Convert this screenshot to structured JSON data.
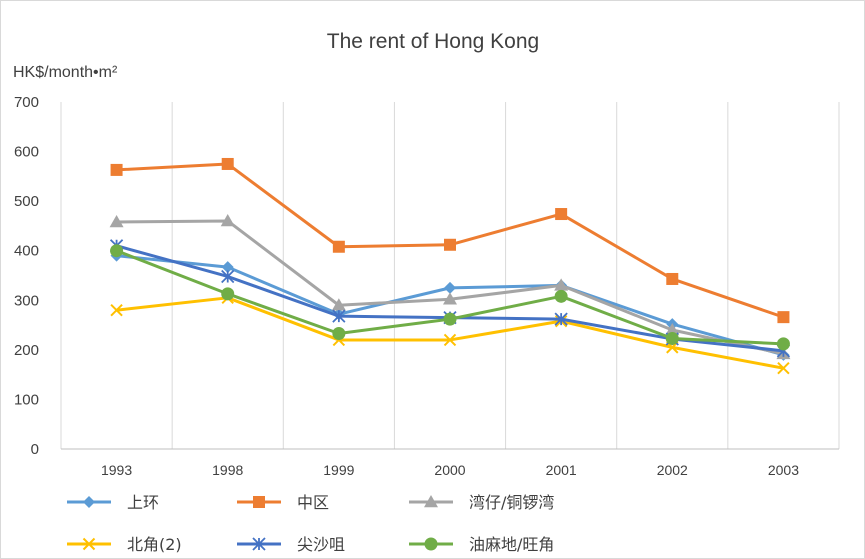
{
  "chart_data": {
    "type": "line",
    "title": "The rent of Hong Kong",
    "ylabel": "HK$/month•m²",
    "xlabel": "",
    "categories": [
      "1993",
      "1998",
      "1999",
      "2000",
      "2001",
      "2002",
      "2003"
    ],
    "ylim": [
      0,
      700
    ],
    "yticks": [
      0,
      100,
      200,
      300,
      400,
      500,
      600,
      700
    ],
    "grid": "vertical",
    "legend": "bottom",
    "series": [
      {
        "name": "上环",
        "values": [
          390,
          367,
          272,
          325,
          330,
          252,
          190
        ],
        "color": "#5b9bd5",
        "marker": "diamond"
      },
      {
        "name": "中区",
        "values": [
          563,
          575,
          408,
          412,
          474,
          343,
          266
        ],
        "color": "#ed7d31",
        "marker": "square"
      },
      {
        "name": "湾仔/铜锣湾",
        "values": [
          458,
          460,
          290,
          302,
          330,
          240,
          192
        ],
        "color": "#a5a5a5",
        "marker": "triangle"
      },
      {
        "name": "北角(2)",
        "values": [
          280,
          305,
          220,
          220,
          258,
          205,
          163
        ],
        "color": "#ffc000",
        "marker": "x"
      },
      {
        "name": "尖沙咀",
        "values": [
          410,
          348,
          268,
          265,
          262,
          222,
          198
        ],
        "color": "#4472c4",
        "marker": "star"
      },
      {
        "name": "油麻地/旺角",
        "values": [
          400,
          313,
          233,
          262,
          308,
          223,
          212
        ],
        "color": "#70ad47",
        "marker": "circle"
      }
    ]
  }
}
